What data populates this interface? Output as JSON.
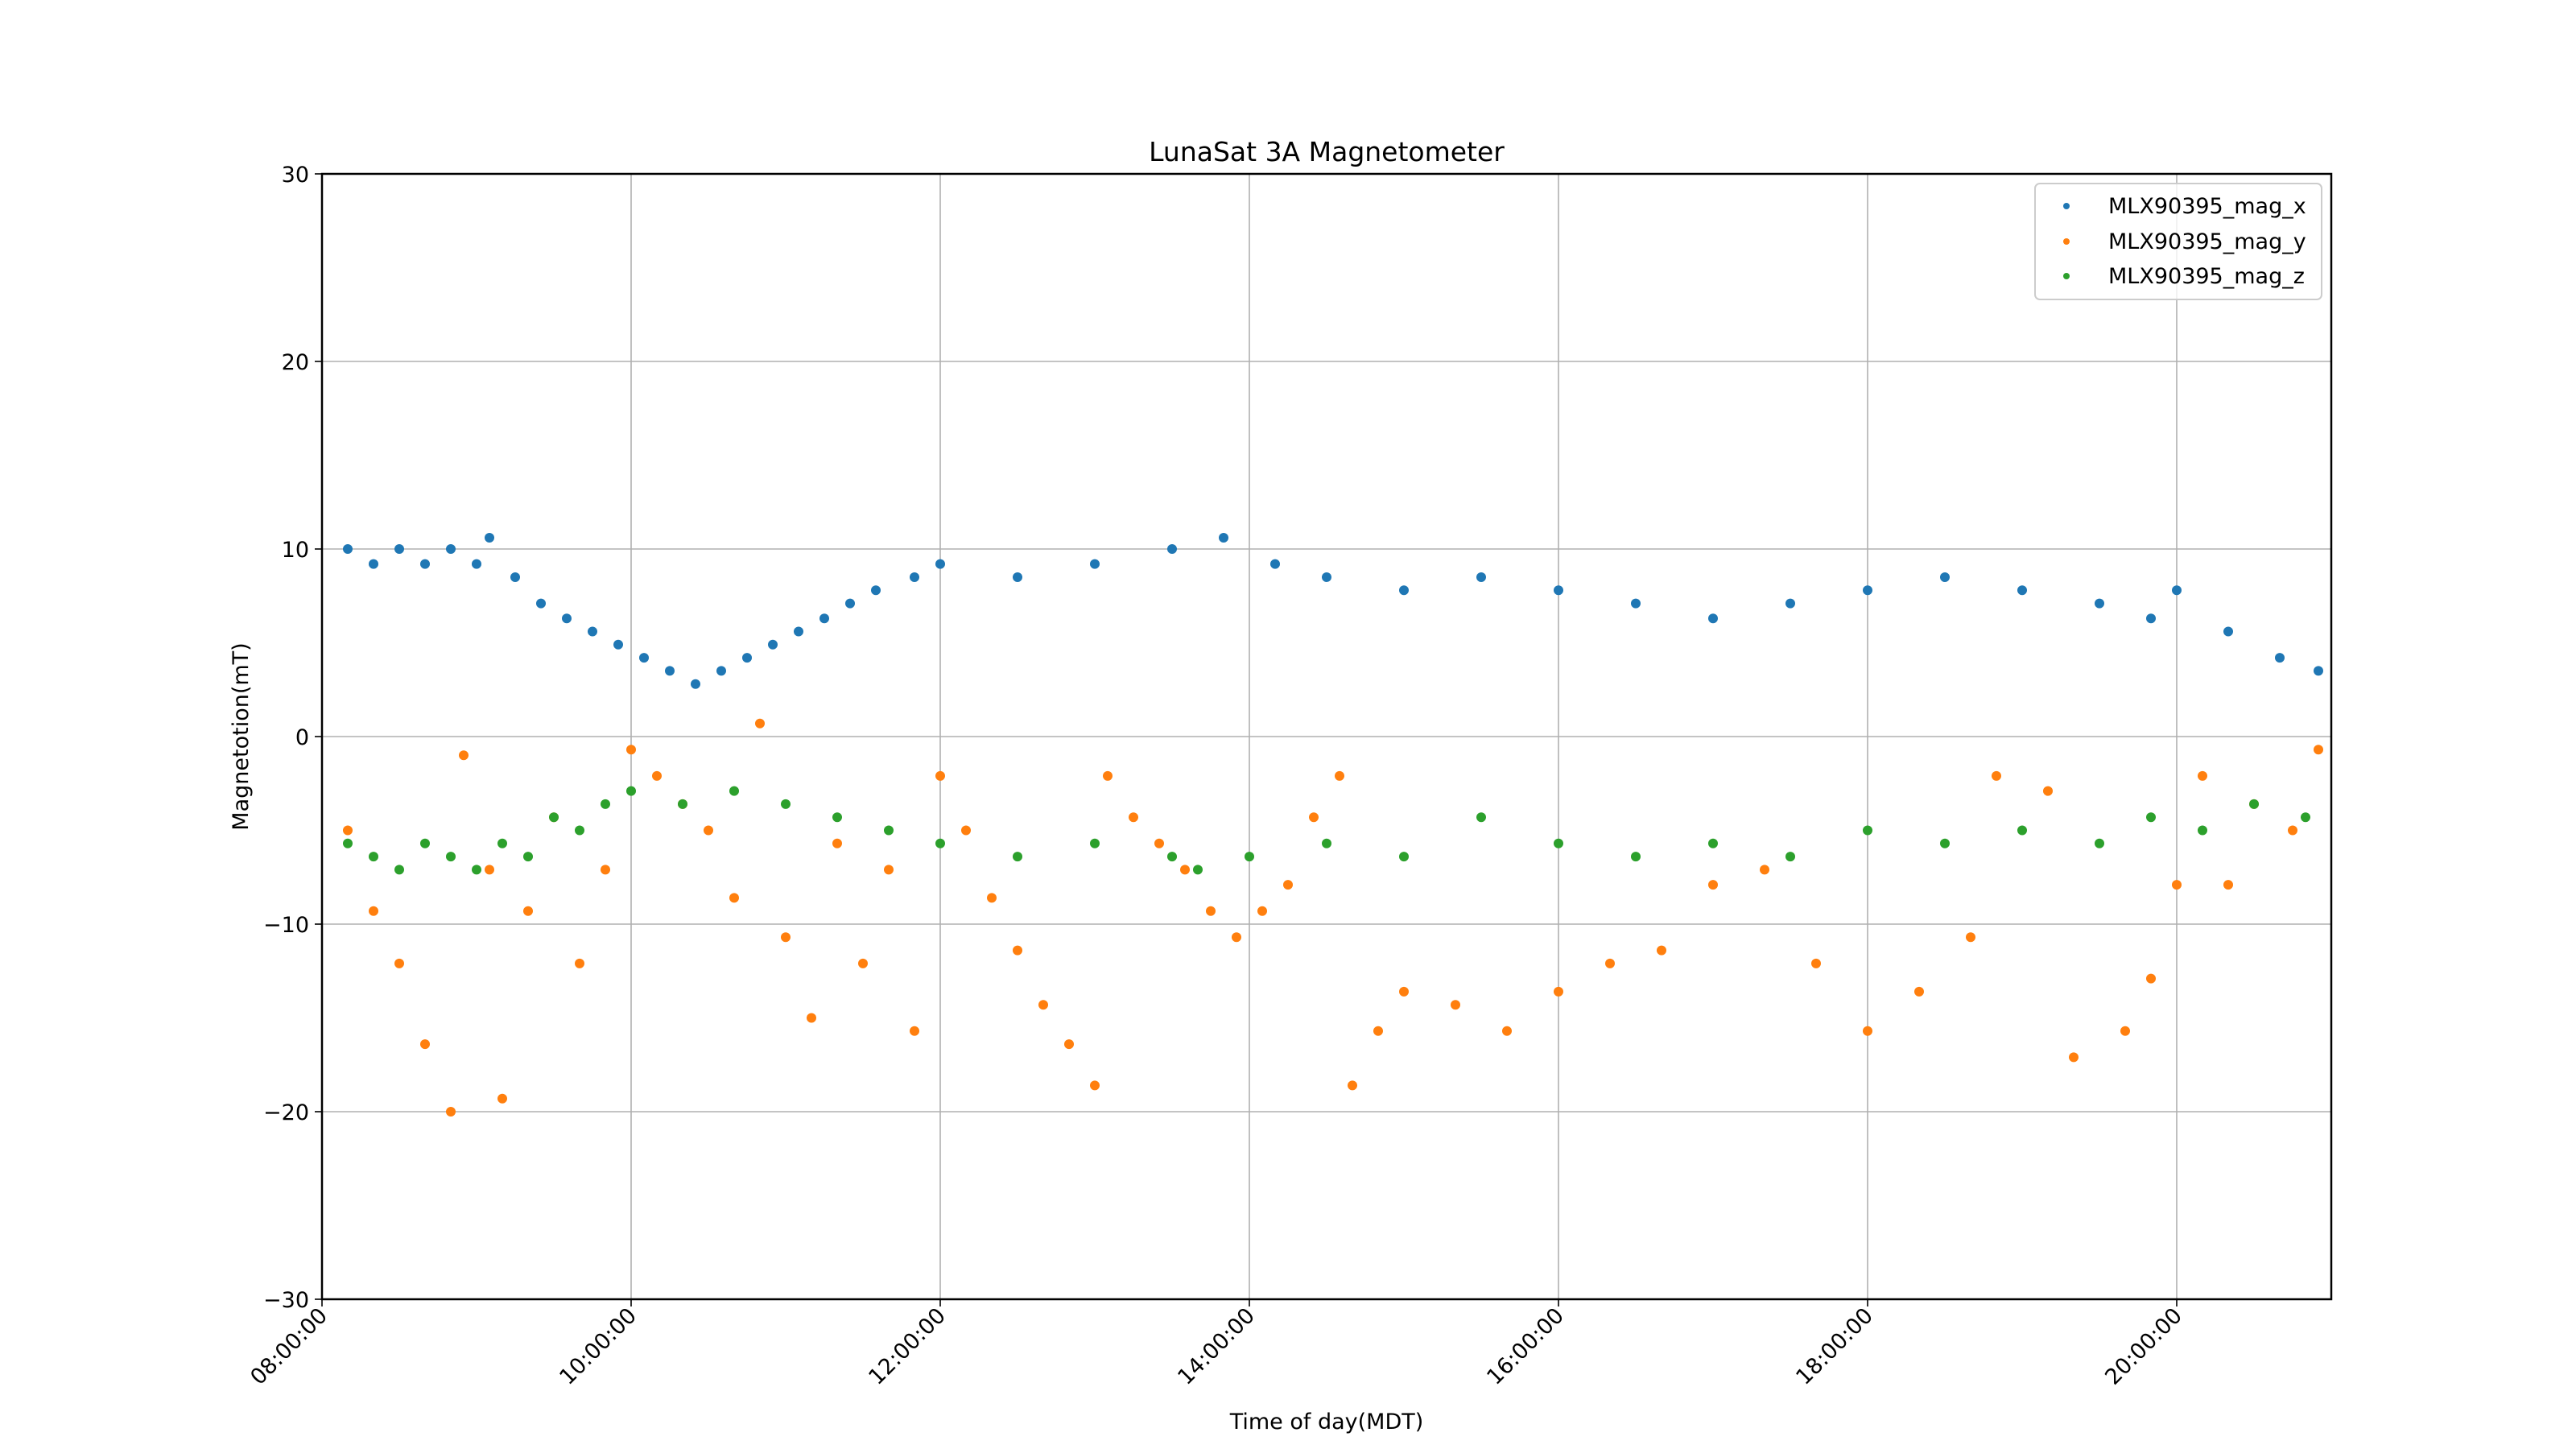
{
  "chart_data": {
    "type": "scatter",
    "title": "LunaSat 3A Magnetometer",
    "xlabel": "Time of day(MDT)",
    "ylabel": "Magnetotion(mT)",
    "xlim": [
      "08:00:00",
      "21:00:00"
    ],
    "ylim": [
      -30,
      30
    ],
    "x_ticks": [
      "08:00:00",
      "10:00:00",
      "12:00:00",
      "14:00:00",
      "16:00:00",
      "18:00:00",
      "20:00:00"
    ],
    "y_ticks": [
      30,
      20,
      10,
      0,
      -10,
      -20,
      -30
    ],
    "grid": true,
    "legend_position": "top-right",
    "series": [
      {
        "name": "MLX90395_mag_x",
        "color": "#1f77b4",
        "points": [
          [
            "08:10:00",
            10.0
          ],
          [
            "08:20:00",
            9.2
          ],
          [
            "08:30:00",
            10.0
          ],
          [
            "08:40:00",
            9.2
          ],
          [
            "08:50:00",
            10.0
          ],
          [
            "09:00:00",
            9.2
          ],
          [
            "09:05:00",
            10.6
          ],
          [
            "09:15:00",
            8.5
          ],
          [
            "09:25:00",
            7.1
          ],
          [
            "09:35:00",
            6.3
          ],
          [
            "09:45:00",
            5.6
          ],
          [
            "09:55:00",
            4.9
          ],
          [
            "10:05:00",
            4.2
          ],
          [
            "10:15:00",
            3.5
          ],
          [
            "10:25:00",
            2.8
          ],
          [
            "10:35:00",
            3.5
          ],
          [
            "10:45:00",
            4.2
          ],
          [
            "10:55:00",
            4.9
          ],
          [
            "11:05:00",
            5.6
          ],
          [
            "11:15:00",
            6.3
          ],
          [
            "11:25:00",
            7.1
          ],
          [
            "11:35:00",
            7.8
          ],
          [
            "11:50:00",
            8.5
          ],
          [
            "12:00:00",
            9.2
          ],
          [
            "12:30:00",
            8.5
          ],
          [
            "13:00:00",
            9.2
          ],
          [
            "13:30:00",
            10.0
          ],
          [
            "13:50:00",
            10.6
          ],
          [
            "14:10:00",
            9.2
          ],
          [
            "14:30:00",
            8.5
          ],
          [
            "15:00:00",
            7.8
          ],
          [
            "15:30:00",
            8.5
          ],
          [
            "16:00:00",
            7.8
          ],
          [
            "16:30:00",
            7.1
          ],
          [
            "17:00:00",
            6.3
          ],
          [
            "17:30:00",
            7.1
          ],
          [
            "18:00:00",
            7.8
          ],
          [
            "18:30:00",
            8.5
          ],
          [
            "19:00:00",
            7.8
          ],
          [
            "19:30:00",
            7.1
          ],
          [
            "19:50:00",
            6.3
          ],
          [
            "20:00:00",
            7.8
          ],
          [
            "20:20:00",
            5.6
          ],
          [
            "20:40:00",
            4.2
          ],
          [
            "20:55:00",
            3.5
          ]
        ]
      },
      {
        "name": "MLX90395_mag_y",
        "color": "#ff7f0e",
        "points": [
          [
            "08:10:00",
            -5.0
          ],
          [
            "08:20:00",
            -9.3
          ],
          [
            "08:30:00",
            -12.1
          ],
          [
            "08:40:00",
            -16.4
          ],
          [
            "08:50:00",
            -20.0
          ],
          [
            "08:55:00",
            -1.0
          ],
          [
            "09:05:00",
            -7.1
          ],
          [
            "09:10:00",
            -19.3
          ],
          [
            "09:20:00",
            -9.3
          ],
          [
            "09:30:00",
            -4.3
          ],
          [
            "09:40:00",
            -12.1
          ],
          [
            "09:50:00",
            -7.1
          ],
          [
            "10:00:00",
            -0.7
          ],
          [
            "10:10:00",
            -2.1
          ],
          [
            "10:20:00",
            -3.6
          ],
          [
            "10:30:00",
            -5.0
          ],
          [
            "10:40:00",
            -8.6
          ],
          [
            "10:50:00",
            0.7
          ],
          [
            "11:00:00",
            -10.7
          ],
          [
            "11:10:00",
            -15.0
          ],
          [
            "11:20:00",
            -5.7
          ],
          [
            "11:30:00",
            -12.1
          ],
          [
            "11:40:00",
            -7.1
          ],
          [
            "11:50:00",
            -15.7
          ],
          [
            "12:00:00",
            -2.1
          ],
          [
            "12:10:00",
            -5.0
          ],
          [
            "12:20:00",
            -8.6
          ],
          [
            "12:30:00",
            -11.4
          ],
          [
            "12:40:00",
            -14.3
          ],
          [
            "12:50:00",
            -16.4
          ],
          [
            "13:00:00",
            -18.6
          ],
          [
            "13:05:00",
            -2.1
          ],
          [
            "13:15:00",
            -4.3
          ],
          [
            "13:25:00",
            -5.7
          ],
          [
            "13:35:00",
            -7.1
          ],
          [
            "13:45:00",
            -9.3
          ],
          [
            "13:55:00",
            -10.7
          ],
          [
            "14:05:00",
            -9.3
          ],
          [
            "14:15:00",
            -7.9
          ],
          [
            "14:25:00",
            -4.3
          ],
          [
            "14:35:00",
            -2.1
          ],
          [
            "14:40:00",
            -18.6
          ],
          [
            "14:50:00",
            -15.7
          ],
          [
            "15:00:00",
            -13.6
          ],
          [
            "15:20:00",
            -14.3
          ],
          [
            "15:40:00",
            -15.7
          ],
          [
            "16:00:00",
            -13.6
          ],
          [
            "16:20:00",
            -12.1
          ],
          [
            "16:40:00",
            -11.4
          ],
          [
            "17:00:00",
            -7.9
          ],
          [
            "17:20:00",
            -7.1
          ],
          [
            "17:40:00",
            -12.1
          ],
          [
            "18:00:00",
            -15.7
          ],
          [
            "18:20:00",
            -13.6
          ],
          [
            "18:40:00",
            -10.7
          ],
          [
            "18:50:00",
            -2.1
          ],
          [
            "19:10:00",
            -2.9
          ],
          [
            "19:20:00",
            -17.1
          ],
          [
            "19:40:00",
            -15.7
          ],
          [
            "19:50:00",
            -12.9
          ],
          [
            "20:00:00",
            -7.9
          ],
          [
            "20:10:00",
            -2.1
          ],
          [
            "20:20:00",
            -7.9
          ],
          [
            "20:30:00",
            -3.6
          ],
          [
            "20:45:00",
            -5.0
          ],
          [
            "20:55:00",
            -0.7
          ]
        ]
      },
      {
        "name": "MLX90395_mag_z",
        "color": "#2ca02c",
        "points": [
          [
            "08:10:00",
            -5.7
          ],
          [
            "08:20:00",
            -6.4
          ],
          [
            "08:30:00",
            -7.1
          ],
          [
            "08:40:00",
            -5.7
          ],
          [
            "08:50:00",
            -6.4
          ],
          [
            "09:00:00",
            -7.1
          ],
          [
            "09:10:00",
            -5.7
          ],
          [
            "09:20:00",
            -6.4
          ],
          [
            "09:30:00",
            -4.3
          ],
          [
            "09:40:00",
            -5.0
          ],
          [
            "09:50:00",
            -3.6
          ],
          [
            "10:00:00",
            -2.9
          ],
          [
            "10:20:00",
            -3.6
          ],
          [
            "10:40:00",
            -2.9
          ],
          [
            "11:00:00",
            -3.6
          ],
          [
            "11:20:00",
            -4.3
          ],
          [
            "11:40:00",
            -5.0
          ],
          [
            "12:00:00",
            -5.7
          ],
          [
            "12:30:00",
            -6.4
          ],
          [
            "13:00:00",
            -5.7
          ],
          [
            "13:30:00",
            -6.4
          ],
          [
            "13:40:00",
            -7.1
          ],
          [
            "14:00:00",
            -6.4
          ],
          [
            "14:30:00",
            -5.7
          ],
          [
            "15:00:00",
            -6.4
          ],
          [
            "15:30:00",
            -4.3
          ],
          [
            "16:00:00",
            -5.7
          ],
          [
            "16:30:00",
            -6.4
          ],
          [
            "17:00:00",
            -5.7
          ],
          [
            "17:30:00",
            -6.4
          ],
          [
            "18:00:00",
            -5.0
          ],
          [
            "18:30:00",
            -5.7
          ],
          [
            "19:00:00",
            -5.0
          ],
          [
            "19:30:00",
            -5.7
          ],
          [
            "19:50:00",
            -4.3
          ],
          [
            "20:10:00",
            -5.0
          ],
          [
            "20:30:00",
            -3.6
          ],
          [
            "20:50:00",
            -4.3
          ]
        ]
      }
    ]
  }
}
